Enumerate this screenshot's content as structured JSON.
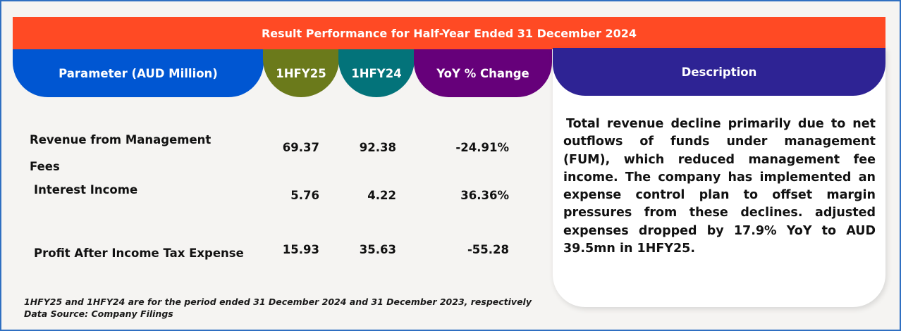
{
  "title": "Result Performance for Half-Year Ended 31 December 2024",
  "headers": {
    "parameter": "Parameter (AUD Million)",
    "current": "1HFY25",
    "previous": "1HFY24",
    "yoy": "YoY % Change",
    "description": "Description"
  },
  "colors": {
    "title_bar": "#ff4a24",
    "parameter_header": "#0056d2",
    "current_header": "#6b7a1b",
    "previous_header": "#03737a",
    "yoy_header": "#66007a",
    "description_header": "#2e2394"
  },
  "rows": [
    {
      "parameter": "Revenue from Management Fees",
      "current": "69.37",
      "previous": "92.38",
      "yoy": "-24.91%"
    },
    {
      "parameter": "Interest Income",
      "current": "5.76",
      "previous": "4.22",
      "yoy": "36.36%"
    },
    {
      "parameter": "Profit After Income Tax Expense",
      "current": "15.93",
      "previous": "35.63",
      "yoy": "-55.28"
    }
  ],
  "description": "Total revenue decline primarily due to net outflows of funds under management (FUM), which reduced management fee income. The company has implemented an expense control plan to offset margin pressures from these declines. adjusted expenses dropped by 17.9% YoY to AUD 39.5mn in 1HFY25.",
  "footnotes": {
    "period_note": "1HFY25 and 1HFY24 are for the period ended 31 December 2024 and 31 December 2023, respectively",
    "source": "Data Source: Company Filings"
  }
}
